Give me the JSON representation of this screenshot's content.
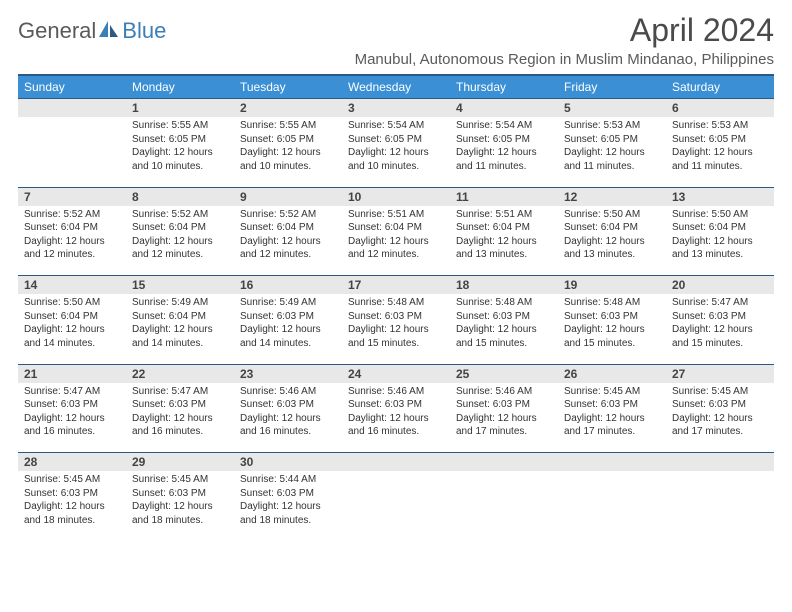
{
  "logo": {
    "part1": "General",
    "part2": "Blue"
  },
  "title": "April 2024",
  "location": "Manubul, Autonomous Region in Muslim Mindanao, Philippines",
  "colors": {
    "header_bg": "#3b8fd4",
    "header_border": "#2c5a84",
    "daynum_bg": "#e8e8e8",
    "logo_gray": "#5a5a5a",
    "logo_blue": "#3b7fb8"
  },
  "weekdays": [
    "Sunday",
    "Monday",
    "Tuesday",
    "Wednesday",
    "Thursday",
    "Friday",
    "Saturday"
  ],
  "weeks": [
    [
      null,
      {
        "n": "1",
        "sr": "Sunrise: 5:55 AM",
        "ss": "Sunset: 6:05 PM",
        "d1": "Daylight: 12 hours",
        "d2": "and 10 minutes."
      },
      {
        "n": "2",
        "sr": "Sunrise: 5:55 AM",
        "ss": "Sunset: 6:05 PM",
        "d1": "Daylight: 12 hours",
        "d2": "and 10 minutes."
      },
      {
        "n": "3",
        "sr": "Sunrise: 5:54 AM",
        "ss": "Sunset: 6:05 PM",
        "d1": "Daylight: 12 hours",
        "d2": "and 10 minutes."
      },
      {
        "n": "4",
        "sr": "Sunrise: 5:54 AM",
        "ss": "Sunset: 6:05 PM",
        "d1": "Daylight: 12 hours",
        "d2": "and 11 minutes."
      },
      {
        "n": "5",
        "sr": "Sunrise: 5:53 AM",
        "ss": "Sunset: 6:05 PM",
        "d1": "Daylight: 12 hours",
        "d2": "and 11 minutes."
      },
      {
        "n": "6",
        "sr": "Sunrise: 5:53 AM",
        "ss": "Sunset: 6:05 PM",
        "d1": "Daylight: 12 hours",
        "d2": "and 11 minutes."
      }
    ],
    [
      {
        "n": "7",
        "sr": "Sunrise: 5:52 AM",
        "ss": "Sunset: 6:04 PM",
        "d1": "Daylight: 12 hours",
        "d2": "and 12 minutes."
      },
      {
        "n": "8",
        "sr": "Sunrise: 5:52 AM",
        "ss": "Sunset: 6:04 PM",
        "d1": "Daylight: 12 hours",
        "d2": "and 12 minutes."
      },
      {
        "n": "9",
        "sr": "Sunrise: 5:52 AM",
        "ss": "Sunset: 6:04 PM",
        "d1": "Daylight: 12 hours",
        "d2": "and 12 minutes."
      },
      {
        "n": "10",
        "sr": "Sunrise: 5:51 AM",
        "ss": "Sunset: 6:04 PM",
        "d1": "Daylight: 12 hours",
        "d2": "and 12 minutes."
      },
      {
        "n": "11",
        "sr": "Sunrise: 5:51 AM",
        "ss": "Sunset: 6:04 PM",
        "d1": "Daylight: 12 hours",
        "d2": "and 13 minutes."
      },
      {
        "n": "12",
        "sr": "Sunrise: 5:50 AM",
        "ss": "Sunset: 6:04 PM",
        "d1": "Daylight: 12 hours",
        "d2": "and 13 minutes."
      },
      {
        "n": "13",
        "sr": "Sunrise: 5:50 AM",
        "ss": "Sunset: 6:04 PM",
        "d1": "Daylight: 12 hours",
        "d2": "and 13 minutes."
      }
    ],
    [
      {
        "n": "14",
        "sr": "Sunrise: 5:50 AM",
        "ss": "Sunset: 6:04 PM",
        "d1": "Daylight: 12 hours",
        "d2": "and 14 minutes."
      },
      {
        "n": "15",
        "sr": "Sunrise: 5:49 AM",
        "ss": "Sunset: 6:04 PM",
        "d1": "Daylight: 12 hours",
        "d2": "and 14 minutes."
      },
      {
        "n": "16",
        "sr": "Sunrise: 5:49 AM",
        "ss": "Sunset: 6:03 PM",
        "d1": "Daylight: 12 hours",
        "d2": "and 14 minutes."
      },
      {
        "n": "17",
        "sr": "Sunrise: 5:48 AM",
        "ss": "Sunset: 6:03 PM",
        "d1": "Daylight: 12 hours",
        "d2": "and 15 minutes."
      },
      {
        "n": "18",
        "sr": "Sunrise: 5:48 AM",
        "ss": "Sunset: 6:03 PM",
        "d1": "Daylight: 12 hours",
        "d2": "and 15 minutes."
      },
      {
        "n": "19",
        "sr": "Sunrise: 5:48 AM",
        "ss": "Sunset: 6:03 PM",
        "d1": "Daylight: 12 hours",
        "d2": "and 15 minutes."
      },
      {
        "n": "20",
        "sr": "Sunrise: 5:47 AM",
        "ss": "Sunset: 6:03 PM",
        "d1": "Daylight: 12 hours",
        "d2": "and 15 minutes."
      }
    ],
    [
      {
        "n": "21",
        "sr": "Sunrise: 5:47 AM",
        "ss": "Sunset: 6:03 PM",
        "d1": "Daylight: 12 hours",
        "d2": "and 16 minutes."
      },
      {
        "n": "22",
        "sr": "Sunrise: 5:47 AM",
        "ss": "Sunset: 6:03 PM",
        "d1": "Daylight: 12 hours",
        "d2": "and 16 minutes."
      },
      {
        "n": "23",
        "sr": "Sunrise: 5:46 AM",
        "ss": "Sunset: 6:03 PM",
        "d1": "Daylight: 12 hours",
        "d2": "and 16 minutes."
      },
      {
        "n": "24",
        "sr": "Sunrise: 5:46 AM",
        "ss": "Sunset: 6:03 PM",
        "d1": "Daylight: 12 hours",
        "d2": "and 16 minutes."
      },
      {
        "n": "25",
        "sr": "Sunrise: 5:46 AM",
        "ss": "Sunset: 6:03 PM",
        "d1": "Daylight: 12 hours",
        "d2": "and 17 minutes."
      },
      {
        "n": "26",
        "sr": "Sunrise: 5:45 AM",
        "ss": "Sunset: 6:03 PM",
        "d1": "Daylight: 12 hours",
        "d2": "and 17 minutes."
      },
      {
        "n": "27",
        "sr": "Sunrise: 5:45 AM",
        "ss": "Sunset: 6:03 PM",
        "d1": "Daylight: 12 hours",
        "d2": "and 17 minutes."
      }
    ],
    [
      {
        "n": "28",
        "sr": "Sunrise: 5:45 AM",
        "ss": "Sunset: 6:03 PM",
        "d1": "Daylight: 12 hours",
        "d2": "and 18 minutes."
      },
      {
        "n": "29",
        "sr": "Sunrise: 5:45 AM",
        "ss": "Sunset: 6:03 PM",
        "d1": "Daylight: 12 hours",
        "d2": "and 18 minutes."
      },
      {
        "n": "30",
        "sr": "Sunrise: 5:44 AM",
        "ss": "Sunset: 6:03 PM",
        "d1": "Daylight: 12 hours",
        "d2": "and 18 minutes."
      },
      null,
      null,
      null,
      null
    ]
  ]
}
